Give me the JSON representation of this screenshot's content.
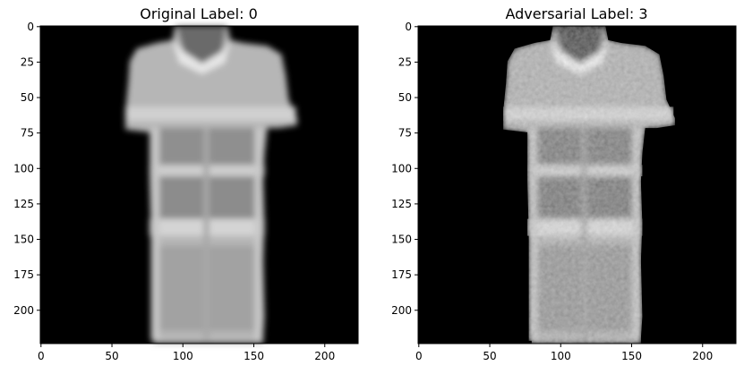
{
  "panels": [
    {
      "title": "Original Label: 0",
      "x_ticks": [
        "0",
        "50",
        "100",
        "150",
        "200"
      ],
      "y_ticks": [
        "0",
        "25",
        "50",
        "75",
        "100",
        "125",
        "150",
        "175",
        "200"
      ],
      "noisy": false
    },
    {
      "title": "Adversarial Label: 3",
      "x_ticks": [
        "0",
        "50",
        "100",
        "150",
        "200"
      ],
      "y_ticks": [
        "0",
        "25",
        "50",
        "75",
        "100",
        "125",
        "150",
        "175",
        "200"
      ],
      "noisy": true
    }
  ],
  "image_extent": [
    0,
    224
  ],
  "colors": {
    "background": "#000000",
    "garment_light": "#b4b4b4",
    "garment_dark": "#8e8e8e"
  }
}
